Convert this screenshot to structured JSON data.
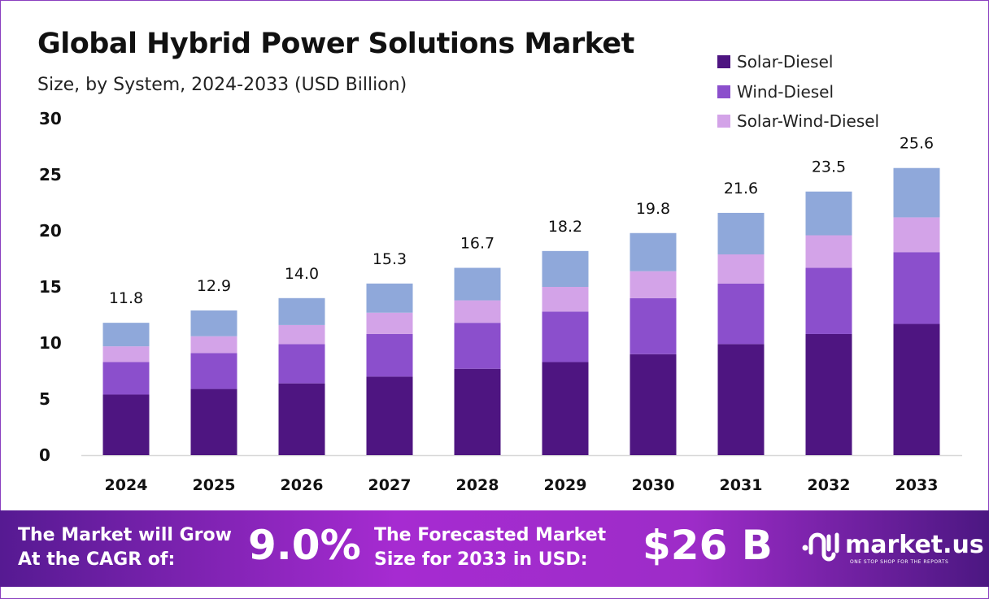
{
  "chart_data": {
    "type": "bar",
    "stacked": true,
    "title": "Global Hybrid Power Solutions Market",
    "subtitle": "Size, by System, 2024-2033 (USD Billion)",
    "xlabel": "",
    "ylabel": "",
    "ylim": [
      0,
      30
    ],
    "yticks": [
      "0",
      "5",
      "10",
      "15",
      "20",
      "25",
      "30"
    ],
    "grid": false,
    "legend_position": "top-right",
    "categories": [
      "2024",
      "2025",
      "2026",
      "2027",
      "2028",
      "2029",
      "2030",
      "2031",
      "2032",
      "2033"
    ],
    "totals": [
      "11.8",
      "12.9",
      "14.0",
      "15.3",
      "16.7",
      "18.2",
      "19.8",
      "21.6",
      "23.5",
      "25.6"
    ],
    "series": [
      {
        "name": "Solar-Diesel",
        "color": "#4e1581",
        "values": [
          5.4,
          5.9,
          6.4,
          7.0,
          7.7,
          8.3,
          9.0,
          9.9,
          10.8,
          11.7
        ]
      },
      {
        "name": "Wind-Diesel",
        "color": "#8b4fcc",
        "values": [
          2.9,
          3.2,
          3.5,
          3.8,
          4.1,
          4.5,
          5.0,
          5.4,
          5.9,
          6.4
        ]
      },
      {
        "name": "Solar-Wind-Diesel",
        "color": "#d3a3e8",
        "values": [
          1.4,
          1.5,
          1.7,
          1.9,
          2.0,
          2.2,
          2.4,
          2.6,
          2.9,
          3.1
        ]
      },
      {
        "color": "#8fa8da",
        "values": [
          2.1,
          2.3,
          2.4,
          2.6,
          2.9,
          3.2,
          3.4,
          3.7,
          3.9,
          4.4
        ]
      }
    ]
  },
  "footer": {
    "cagr_text_1": "The Market will Grow",
    "cagr_text_2": "At the CAGR of:",
    "cagr_value": "9.0%",
    "forecast_text_1": "The Forecasted Market",
    "forecast_text_2": "Size for 2033 in USD:",
    "forecast_value": "$26 B",
    "logo_name": "market.us",
    "logo_tagline": "ONE STOP SHOP FOR THE REPORTS"
  }
}
